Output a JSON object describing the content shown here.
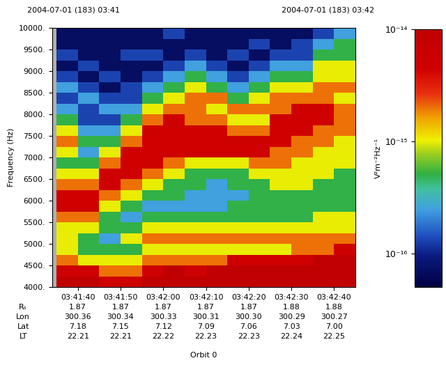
{
  "chart_data": {
    "type": "spectrogram",
    "top_left_text": "2004-07-01 (183) 03:41",
    "top_right_text": "2004-07-01 (183) 03:42",
    "xlabel": "Orbit 0",
    "ylabel": "Frequency (Hz)",
    "xlim": [
      34,
      105
    ],
    "xticks": [
      {
        "value": 40,
        "label": "03:41:40"
      },
      {
        "value": 50,
        "label": "03:41:50"
      },
      {
        "value": 60,
        "label": "03:42:00"
      },
      {
        "value": 70,
        "label": "03:42:10"
      },
      {
        "value": 80,
        "label": "03:42:20"
      },
      {
        "value": 90,
        "label": "03:42:30"
      },
      {
        "value": 100,
        "label": "03:42:40"
      }
    ],
    "ylim": [
      4000,
      10000
    ],
    "yticks": [
      {
        "value": 4000,
        "label": "4000."
      },
      {
        "value": 4500,
        "label": "4500."
      },
      {
        "value": 5000,
        "label": "5000."
      },
      {
        "value": 5500,
        "label": "5500."
      },
      {
        "value": 6000,
        "label": "6000."
      },
      {
        "value": 6500,
        "label": "6500."
      },
      {
        "value": 7000,
        "label": "7000."
      },
      {
        "value": 7500,
        "label": "7500."
      },
      {
        "value": 8000,
        "label": "8000."
      },
      {
        "value": 8500,
        "label": "8500."
      },
      {
        "value": 9000,
        "label": "9000."
      },
      {
        "value": 9500,
        "label": "9500."
      },
      {
        "value": 10000,
        "label": "10000."
      }
    ],
    "x_bins": [
      35,
      40,
      45,
      50,
      55,
      60,
      65,
      70,
      75,
      80,
      85,
      90,
      95,
      100,
      105
    ],
    "y_bins": [
      4000,
      4250,
      4500,
      4750,
      5000,
      5250,
      5500,
      5750,
      6000,
      6250,
      6500,
      6750,
      7000,
      7250,
      7500,
      7750,
      8000,
      8250,
      8500,
      8750,
      9000,
      9250,
      9500,
      9750,
      10000
    ],
    "cells": [
      [
        1e-14,
        5e-15,
        2e-15,
        1e-15,
        1e-15,
        1e-15,
        2e-15,
        5e-15,
        5e-15,
        2e-15,
        1e-15,
        5e-16,
        1e-15,
        2e-15,
        1e-15,
        5e-16,
        2.5e-16,
        1.3e-16,
        2.5e-16,
        1.3e-16,
        7e-17,
        1.3e-16,
        7e-17,
        7e-17
      ],
      [
        1e-14,
        5e-15,
        1e-15,
        5e-16,
        5e-16,
        1e-15,
        2e-15,
        5e-15,
        5e-15,
        2e-15,
        1e-15,
        5e-16,
        2.5e-16,
        5e-16,
        2.5e-16,
        1.3e-16,
        1.3e-16,
        2.5e-16,
        1.3e-16,
        7e-17,
        1.3e-16,
        7e-17,
        7e-17,
        7e-17
      ],
      [
        5e-15,
        2e-15,
        1e-15,
        5e-16,
        2.5e-16,
        5e-16,
        5e-16,
        1e-15,
        2e-15,
        5e-15,
        5e-15,
        2e-15,
        1e-15,
        5e-16,
        2.5e-16,
        1.3e-16,
        2.5e-16,
        1.3e-16,
        7e-17,
        1.3e-16,
        7e-17,
        7e-17,
        7e-17,
        7e-17
      ],
      [
        5e-15,
        2e-15,
        1e-15,
        5e-16,
        1e-15,
        5e-16,
        2.5e-16,
        5e-16,
        1e-15,
        2e-15,
        5e-15,
        5e-15,
        5e-15,
        2e-15,
        1e-15,
        5e-16,
        2.5e-16,
        1.3e-16,
        1.3e-16,
        7e-17,
        7e-17,
        1.3e-16,
        7e-17,
        7e-17
      ],
      [
        1e-14,
        5e-15,
        2e-15,
        1e-15,
        2e-15,
        1e-15,
        5e-16,
        2.5e-16,
        5e-16,
        1e-15,
        2e-15,
        5e-15,
        5e-15,
        5e-15,
        5e-15,
        2e-15,
        1e-15,
        5e-16,
        2.5e-16,
        1.3e-16,
        7e-17,
        1.3e-16,
        7e-17,
        7e-17
      ],
      [
        1e-14,
        1e-14,
        2e-15,
        1e-15,
        2e-15,
        1e-15,
        5e-16,
        2.5e-16,
        5e-16,
        5e-16,
        1e-15,
        2e-15,
        5e-15,
        5e-15,
        5e-15,
        5e-15,
        2e-15,
        1e-15,
        5e-16,
        2.5e-16,
        1.3e-16,
        7e-17,
        7e-17,
        1.3e-16
      ],
      [
        1e-14,
        5e-15,
        2e-15,
        1e-15,
        2e-15,
        1e-15,
        5e-16,
        2.5e-16,
        2.5e-16,
        5e-16,
        5e-16,
        1e-15,
        5e-15,
        5e-15,
        5e-15,
        2e-15,
        2e-15,
        2e-15,
        1e-15,
        5e-16,
        2.5e-16,
        1.3e-16,
        7e-17,
        7e-17
      ],
      [
        1e-14,
        1e-14,
        2e-15,
        1e-15,
        2e-15,
        1e-15,
        5e-16,
        2.5e-16,
        2.5e-16,
        2.5e-16,
        5e-16,
        1e-15,
        5e-15,
        5e-15,
        5e-15,
        2e-15,
        1e-15,
        2e-15,
        5e-16,
        2.5e-16,
        1.3e-16,
        7e-17,
        7e-17,
        7e-17
      ],
      [
        1e-14,
        1e-14,
        5e-15,
        1e-15,
        2e-15,
        1e-15,
        5e-16,
        5e-16,
        2.5e-16,
        5e-16,
        5e-16,
        1e-15,
        5e-15,
        5e-15,
        2e-15,
        1e-15,
        2e-15,
        5e-16,
        2.5e-16,
        1.3e-16,
        7e-17,
        1.3e-16,
        7e-17,
        7e-17
      ],
      [
        1e-14,
        1e-14,
        5e-15,
        1e-15,
        2e-15,
        1e-15,
        5e-16,
        5e-16,
        5e-16,
        5e-16,
        1e-15,
        2e-15,
        5e-15,
        5e-15,
        2e-15,
        1e-15,
        2e-15,
        1e-15,
        5e-16,
        2.5e-16,
        1.3e-16,
        7e-17,
        1.3e-16,
        7e-17
      ],
      [
        1e-14,
        1e-14,
        5e-15,
        1e-15,
        2e-15,
        1e-15,
        5e-16,
        5e-16,
        5e-16,
        1e-15,
        1e-15,
        2e-15,
        2e-15,
        5e-15,
        5e-15,
        5e-15,
        2e-15,
        2e-15,
        1e-15,
        5e-16,
        2.5e-16,
        1.3e-16,
        7e-17,
        7e-17
      ],
      [
        1e-14,
        1e-14,
        5e-15,
        2e-15,
        2e-15,
        1e-15,
        5e-16,
        5e-16,
        5e-16,
        1e-15,
        1e-15,
        1e-15,
        2e-15,
        2e-15,
        5e-15,
        5e-15,
        5e-15,
        2e-15,
        1e-15,
        5e-16,
        2.5e-16,
        1.3e-16,
        1.3e-16,
        7e-17
      ],
      [
        1e-14,
        1e-14,
        1e-14,
        2e-15,
        2e-15,
        1e-15,
        1e-15,
        5e-16,
        5e-16,
        5e-16,
        1e-15,
        1e-15,
        1e-15,
        2e-15,
        2e-15,
        5e-15,
        5e-15,
        2e-15,
        2e-15,
        1e-15,
        1e-15,
        5e-16,
        2.5e-16,
        1.3e-16
      ],
      [
        1e-14,
        1e-14,
        1e-14,
        5e-15,
        2e-15,
        1e-15,
        1e-15,
        5e-16,
        5e-16,
        5e-16,
        5e-16,
        1e-15,
        1e-15,
        1e-15,
        2e-15,
        2e-15,
        2e-15,
        1e-15,
        2e-15,
        1e-15,
        1e-15,
        5e-16,
        5e-16,
        2.5e-16
      ]
    ],
    "colorbar": {
      "label": "V²m⁻²Hz⁻¹",
      "range": [
        5e-17,
        1e-14
      ],
      "log": true,
      "ticks": [
        {
          "value": 1e-16,
          "label": "10⁻¹⁶"
        },
        {
          "value": 1e-15,
          "label": "10⁻¹⁵"
        },
        {
          "value": 1e-14,
          "label": "10⁻¹⁴"
        }
      ]
    },
    "ephemeris": {
      "row_labels": [
        "Rₛ",
        "Lon",
        "Lat",
        "LT"
      ],
      "rows": [
        [
          "1.87",
          "1.87",
          "1.87",
          "1.87",
          "1.87",
          "1.88",
          "1.88"
        ],
        [
          "300.36",
          "300.34",
          "300.33",
          "300.31",
          "300.30",
          "300.29",
          "300.27"
        ],
        [
          "7.18",
          "7.15",
          "7.12",
          "7.09",
          "7.06",
          "7.03",
          "7.00"
        ],
        [
          "22.21",
          "22.21",
          "22.22",
          "22.23",
          "22.23",
          "22.24",
          "22.25"
        ]
      ]
    }
  }
}
